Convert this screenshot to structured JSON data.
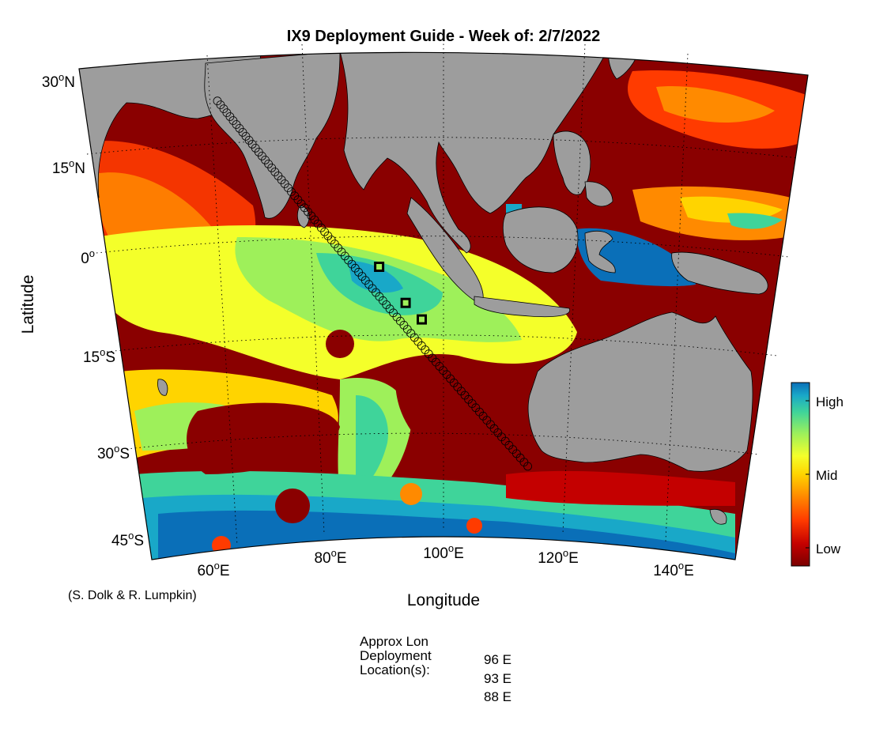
{
  "title": "IX9 Deployment Guide - Week of: 2/7/2022",
  "axes": {
    "xlabel": "Longitude",
    "ylabel": "Latitude",
    "lat_ticks": [
      {
        "deg": "30",
        "hemi": "N"
      },
      {
        "deg": "15",
        "hemi": "N"
      },
      {
        "deg": "0",
        "hemi": ""
      },
      {
        "deg": "15",
        "hemi": "S"
      },
      {
        "deg": "30",
        "hemi": "S"
      },
      {
        "deg": "45",
        "hemi": "S"
      }
    ],
    "lon_ticks": [
      {
        "deg": "60",
        "hemi": "E"
      },
      {
        "deg": "80",
        "hemi": "E"
      },
      {
        "deg": "100",
        "hemi": "E"
      },
      {
        "deg": "120",
        "hemi": "E"
      },
      {
        "deg": "140",
        "hemi": "E"
      }
    ]
  },
  "colorbar": {
    "labels": [
      "High",
      "Mid",
      "Low"
    ],
    "colors": [
      "#7a0000",
      "#c40000",
      "#ff3b00",
      "#ff8a00",
      "#ffd400",
      "#f4ff2a",
      "#9ef05a",
      "#3fd49a",
      "#19a8c8",
      "#0a6fb8"
    ]
  },
  "colors": {
    "land": "#9d9d9d",
    "ocean_low": "#8a0000",
    "track_marker": "#000000"
  },
  "track": {
    "start": {
      "lon": 56,
      "lat": 24
    },
    "end": {
      "lon": 115,
      "lat": -32
    }
  },
  "deployment_markers": [
    {
      "lon": 88,
      "lat": -2
    },
    {
      "lon": 93,
      "lat": -7.5
    },
    {
      "lon": 96,
      "lat": -10
    }
  ],
  "credit": "(S. Dolk & R. Lumpkin)",
  "deployment_info": {
    "header_lines": [
      "Approx Lon",
      "Deployment",
      "Location(s):"
    ],
    "locations": [
      "96 E",
      "93 E",
      "88 E"
    ]
  }
}
